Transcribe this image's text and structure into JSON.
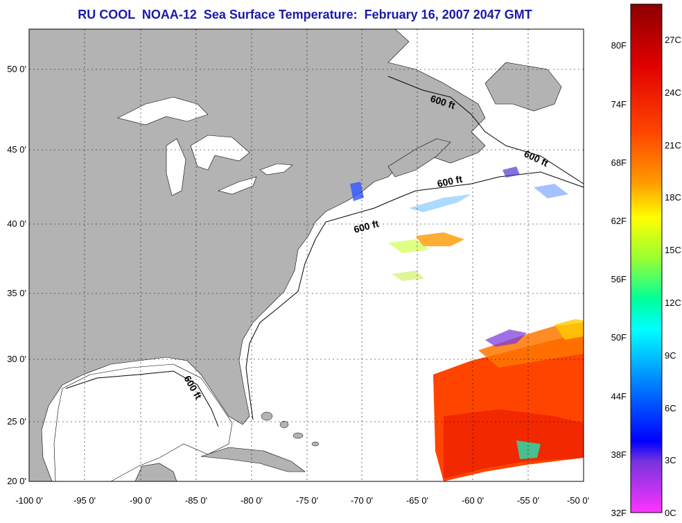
{
  "title": "RU COOL  NOAA-12  Sea Surface Temperature:  February 16, 2007 2047 GMT",
  "map": {
    "lon_range": [
      -100,
      -50
    ],
    "lat_range": [
      20,
      52.5
    ],
    "x_ticks": [
      "-100 0'",
      "-95 0'",
      "-90 0'",
      "-85 0'",
      "-80 0'",
      "-75 0'",
      "-70 0'",
      "-65 0'",
      "-60 0'",
      "-55 0'",
      "-50 0'"
    ],
    "y_ticks": [
      "20 0'",
      "25 0'",
      "30 0'",
      "35 0'",
      "40 0'",
      "45 0'",
      "50 0'"
    ],
    "grid": "dotted",
    "land_color": "#b3b3b3",
    "ocean_color": "#ffffff",
    "isobath_labels": [
      "600 ft",
      "600 ft",
      "600 ft",
      "600 ft",
      "600 ft"
    ]
  },
  "colorbar": {
    "fahrenheit": [
      "80F",
      "74F",
      "68F",
      "62F",
      "56F",
      "50F",
      "44F",
      "38F",
      "32F"
    ],
    "celsius": [
      "27C",
      "24C",
      "21C",
      "18C",
      "15C",
      "12C",
      "9C",
      "6C",
      "3C",
      "0C"
    ],
    "colors": [
      "#8b0000",
      "#e00000",
      "#ff4400",
      "#ff9900",
      "#ffff00",
      "#99ff33",
      "#00ff99",
      "#00ffff",
      "#0088ff",
      "#0000ff",
      "#7733dd",
      "#ff33ff"
    ]
  }
}
